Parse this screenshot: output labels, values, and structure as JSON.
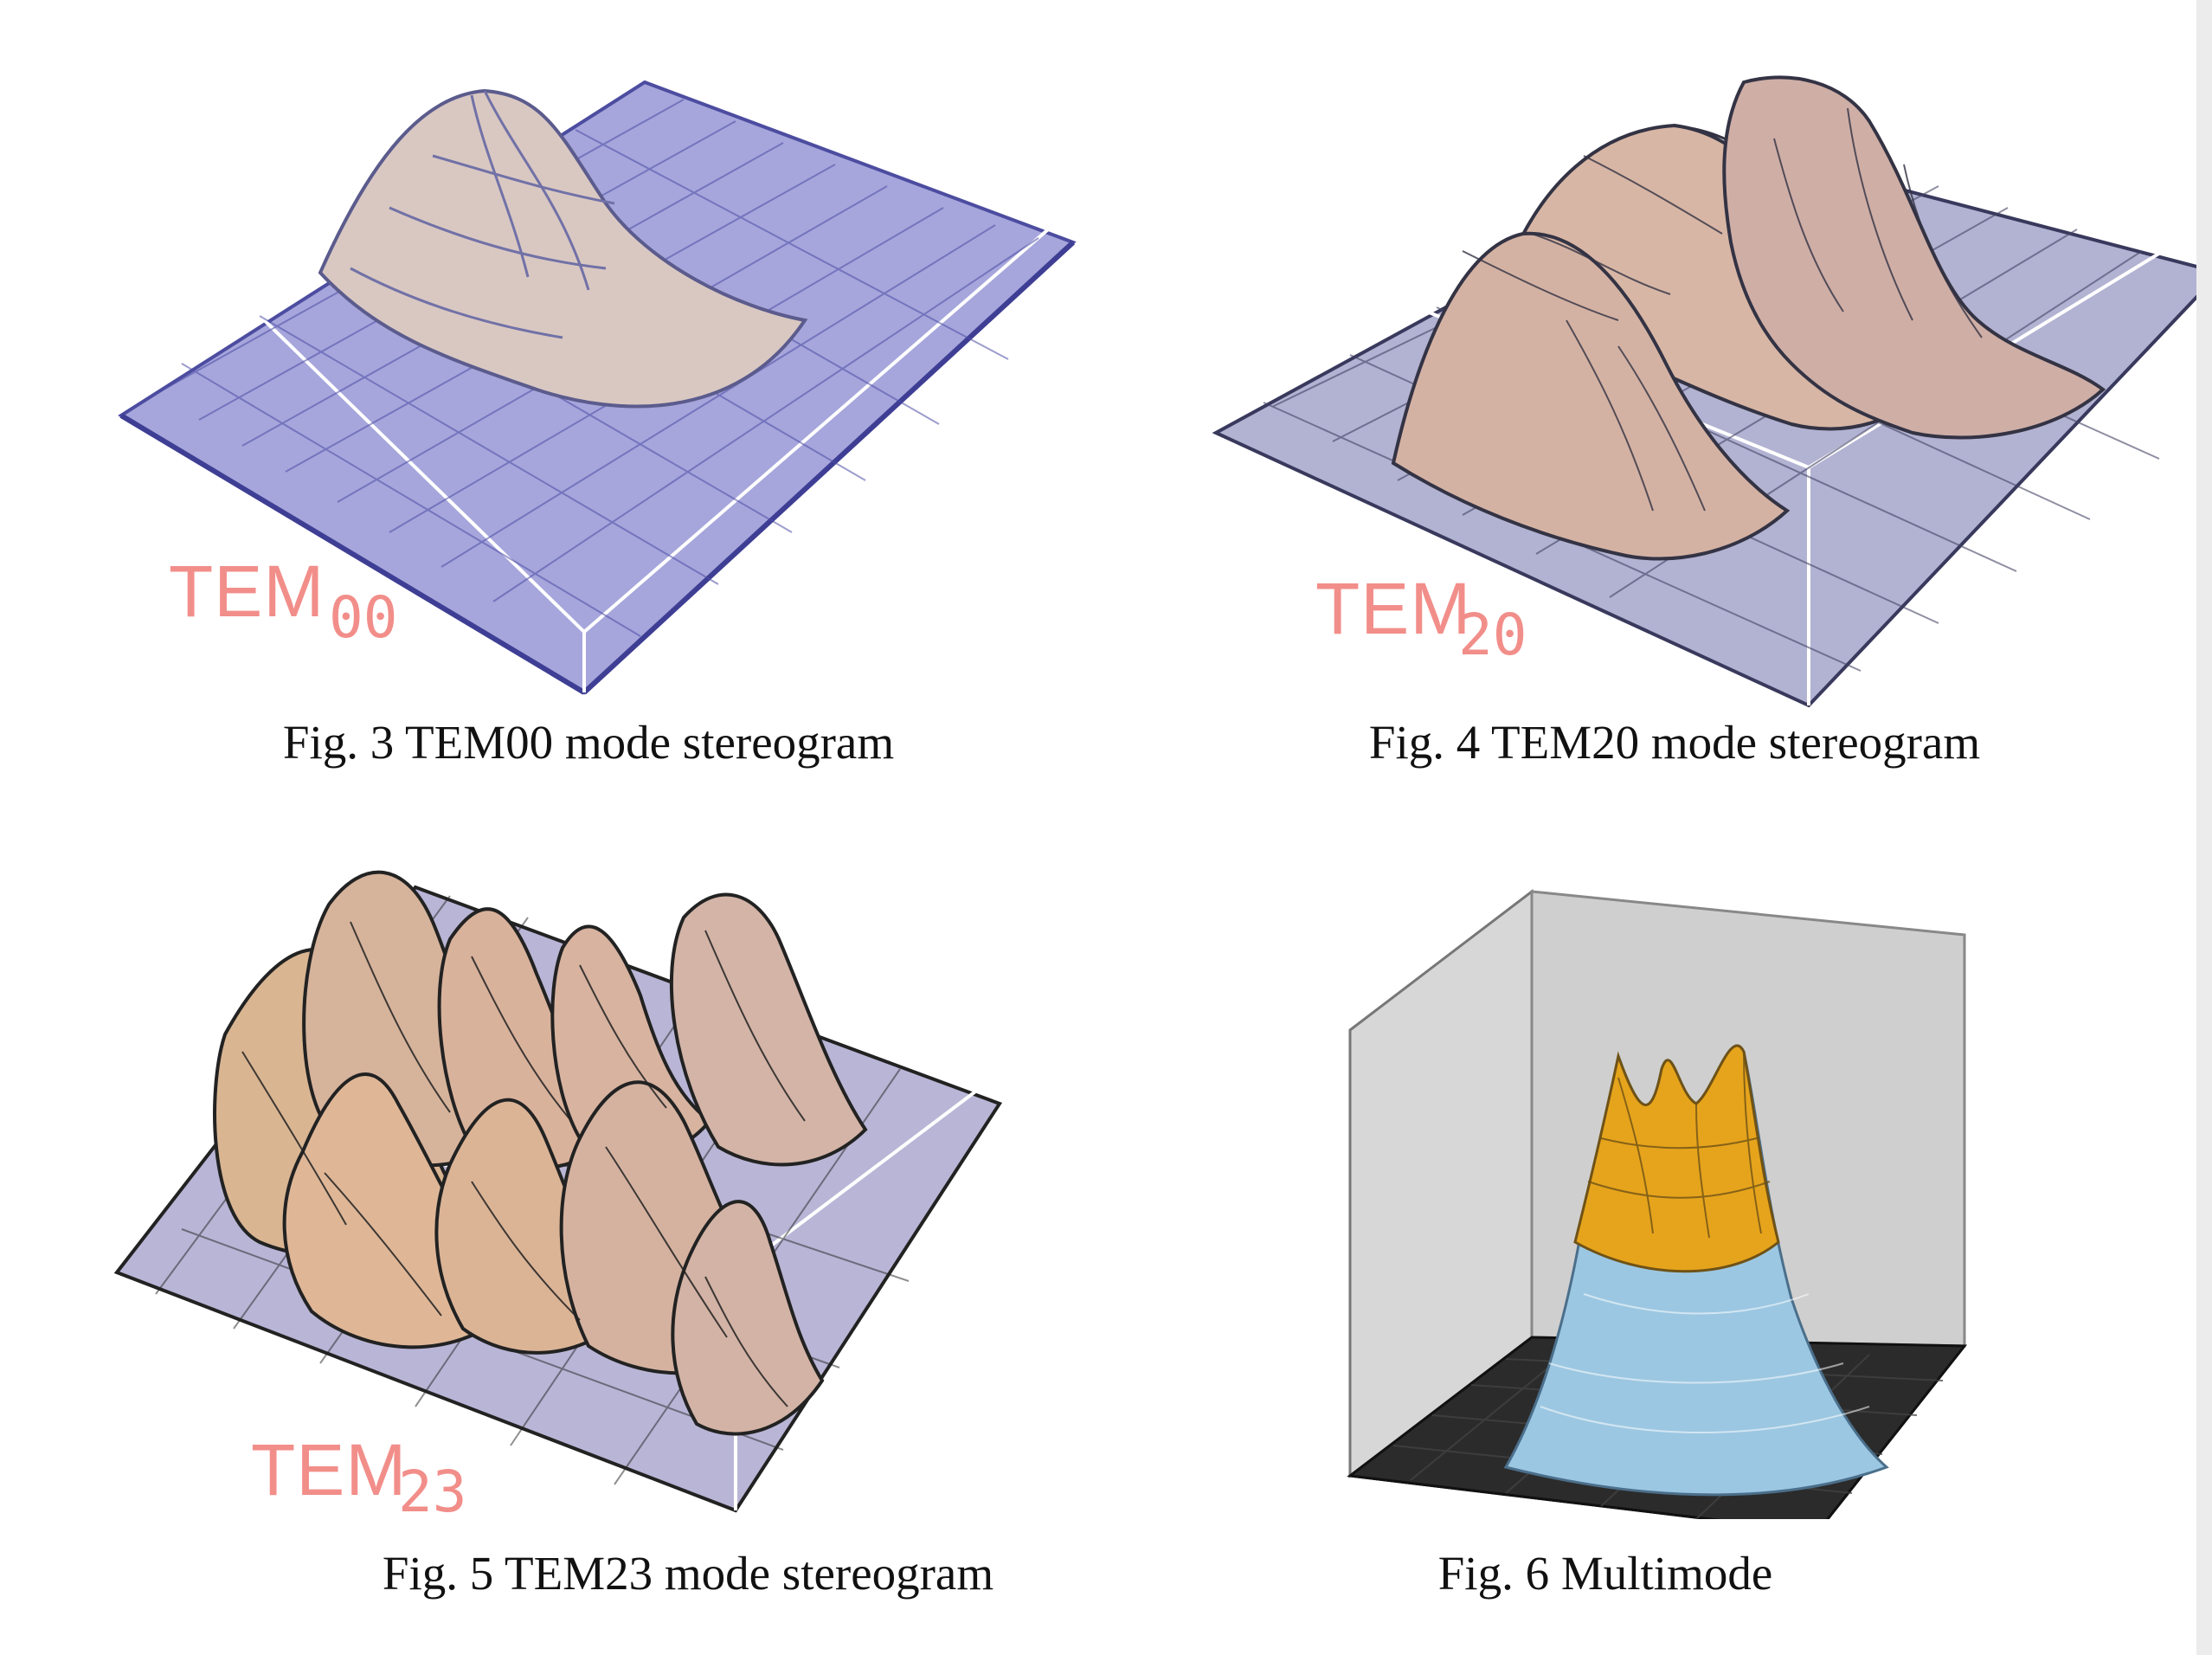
{
  "figures": [
    {
      "caption": "Fig. 3 TEM00 mode stereogram",
      "label_main": "TEM",
      "label_sub": "00",
      "colors": {
        "surface": "#a6a6dc",
        "peak": "#d8c2b8"
      }
    },
    {
      "caption": "Fig. 4 TEM20 mode stereogram",
      "label_main": "TEM",
      "label_sub": "20",
      "colors": {
        "surface": "#b2b2d2",
        "peak": "#d7b7a5"
      }
    },
    {
      "caption": "Fig. 5 TEM23 mode stereogram",
      "label_main": "TEM",
      "label_sub": "23",
      "colors": {
        "surface": "#b9b5d6",
        "peak": "#e4c08e"
      }
    },
    {
      "caption": "Fig. 6 Multimode",
      "colors": {
        "wall": "#d7d7d7",
        "floor": "#2b2b2b",
        "peak": "#e6a41c",
        "base": "#9cc7e2"
      }
    }
  ]
}
